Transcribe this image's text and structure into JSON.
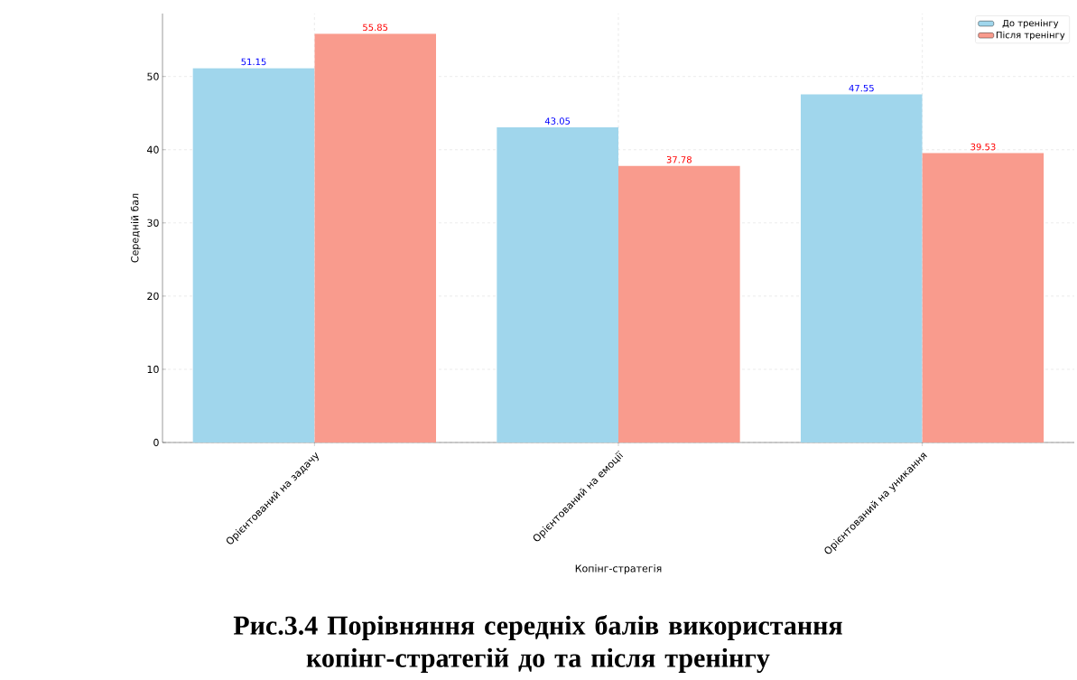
{
  "chart_data": {
    "type": "bar",
    "title": "Рис.3.4 Порівняння середніх балів використання копінг-стратегій до та після тренінгу",
    "xlabel": "Копінг-стратегія",
    "ylabel": "Середній бал",
    "categories": [
      "Орієнтований на задачу",
      "Орієнтований на емоції",
      "Орієнтований на уникання"
    ],
    "series": [
      {
        "name": "До тренінгу",
        "color": "#a0d6ec",
        "values": [
          51.15,
          43.05,
          47.55
        ]
      },
      {
        "name": "Після тренінгу",
        "color": "#f99b8d",
        "values": [
          55.85,
          37.78,
          39.53
        ]
      }
    ],
    "ylim": [
      0,
      58.6
    ],
    "yticks": [
      0,
      10,
      20,
      30,
      40,
      50
    ],
    "grid": true,
    "legend": "top right",
    "data_labels": true
  }
}
